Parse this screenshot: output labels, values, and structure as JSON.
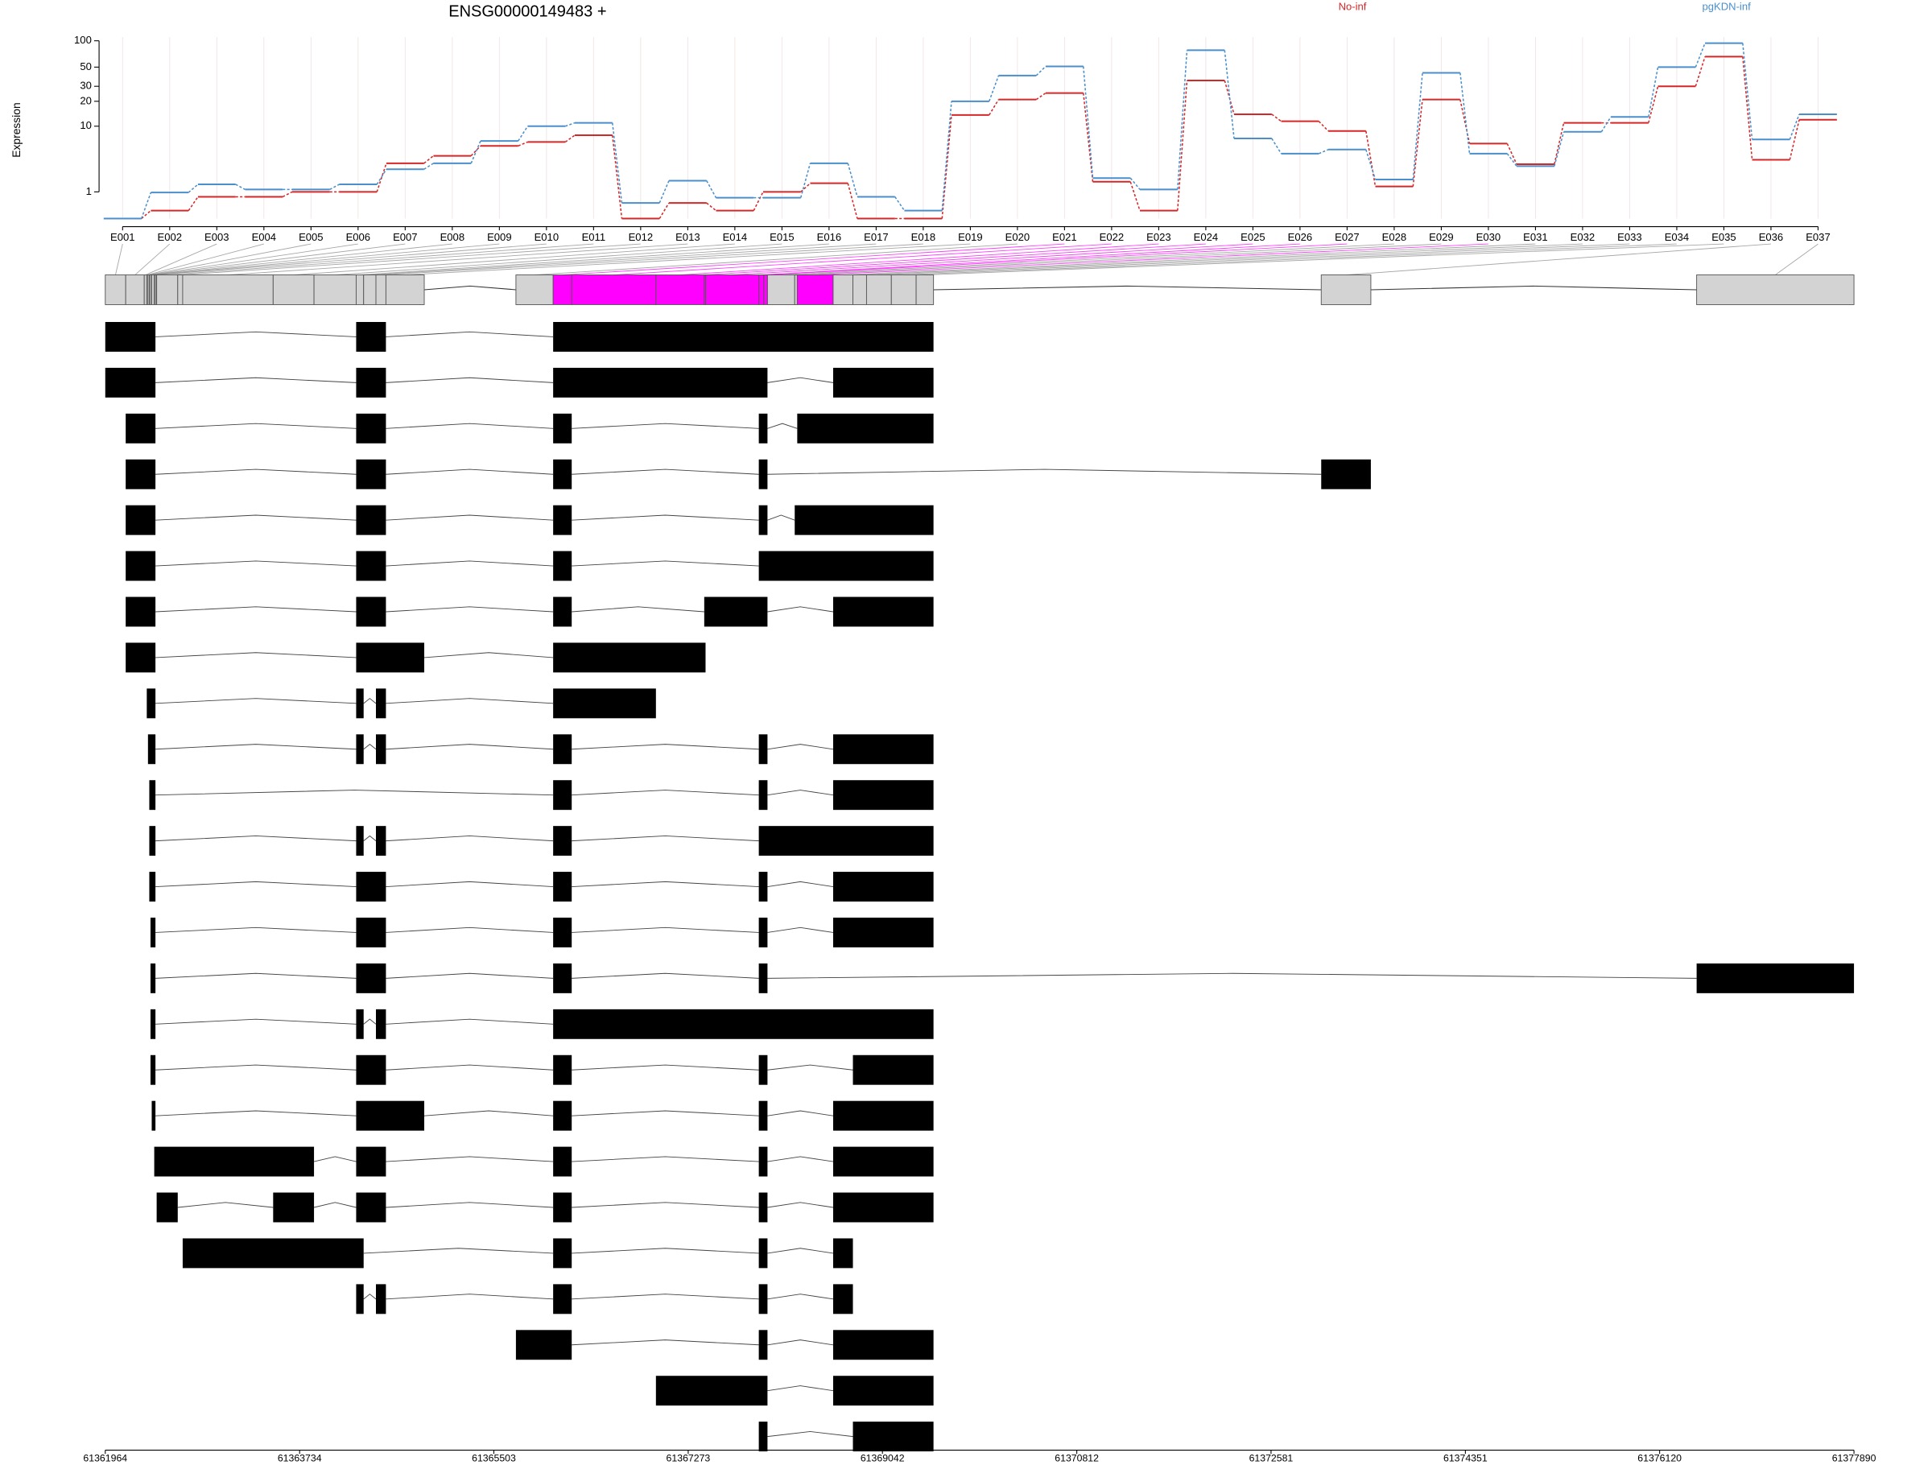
{
  "chart_data": [
    {
      "type": "line",
      "title": "ENSG00000149483 +",
      "y_label": "Expression",
      "categories": [
        "E001",
        "E002",
        "E003",
        "E004",
        "E005",
        "E006",
        "E007",
        "E008",
        "E009",
        "E010",
        "E011",
        "E012",
        "E013",
        "E014",
        "E015",
        "E016",
        "E017",
        "E018",
        "E019",
        "E020",
        "E021",
        "E022",
        "E023",
        "E024",
        "E025",
        "E026",
        "E027",
        "E028",
        "E029",
        "E030",
        "E031",
        "E032",
        "E033",
        "E034",
        "E035",
        "E036",
        "E037"
      ],
      "series": [
        {
          "name": "No-inf",
          "color": "#d62728",
          "values": [
            0,
            0.23,
            0.76,
            0.76,
            1.0,
            1.0,
            3.2,
            4.1,
            5.6,
            6.3,
            7.7,
            0,
            0.5,
            0.23,
            1.0,
            1.5,
            0,
            0,
            13.7,
            21,
            25,
            1.6,
            0.23,
            35,
            14,
            11.5,
            8.7,
            1.3,
            21,
            6,
            3.1,
            11,
            11,
            30,
            66,
            3.6,
            12
          ]
        },
        {
          "name": "pgKDN-inf",
          "color": "#4a8fcb",
          "values": [
            0,
            0.97,
            1.43,
            1.13,
            1.13,
            1.43,
            2.6,
            3.2,
            6.5,
            10,
            11,
            0.5,
            1.67,
            0.72,
            0.72,
            3.2,
            0.76,
            0.23,
            20,
            40,
            51,
            1.86,
            1.13,
            78,
            7,
            4.4,
            5,
            1.76,
            43,
            4.4,
            2.9,
            8.5,
            13,
            50,
            94,
            6.8,
            14
          ]
        }
      ],
      "y_scale": "log1p",
      "ylim": [
        0,
        110
      ],
      "yticks": [
        1,
        10,
        20,
        30,
        50,
        100
      ],
      "grid": true,
      "legend": "top-right"
    },
    {
      "type": "gantt",
      "xlim": [
        61361964,
        61377890
      ],
      "xticks": [
        61361964,
        61363734,
        61365503,
        61367273,
        61369042,
        61370812,
        61372581,
        61374351,
        61376120,
        61377890
      ],
      "exon_color": "#d3d3d3",
      "significant_color": "#ff00ff",
      "transcript_color": "#000000",
      "exon_bins": [
        [
          61361964,
          61362150
        ],
        [
          61362150,
          61362319
        ],
        [
          61362319,
          61362342
        ],
        [
          61362342,
          61362353
        ],
        [
          61362353,
          61362365
        ],
        [
          61362365,
          61362376
        ],
        [
          61362376,
          61362387
        ],
        [
          61362387,
          61362410
        ],
        [
          61362410,
          61362421
        ],
        [
          61362421,
          61362432
        ],
        [
          61362432,
          61362624
        ],
        [
          61362624,
          61362669
        ],
        [
          61362669,
          61363493
        ],
        [
          61363493,
          61363865
        ],
        [
          61363865,
          61364249
        ],
        [
          61364249,
          61364317
        ],
        [
          61364317,
          61364429
        ],
        [
          61364429,
          61364520
        ],
        [
          61364520,
          61364869
        ],
        [
          61365704,
          61366043
        ],
        [
          61366043,
          61366212
        ],
        [
          61366212,
          61366979
        ],
        [
          61366979,
          61367419
        ],
        [
          61367419,
          61367431
        ],
        [
          61367431,
          61367916
        ],
        [
          61367916,
          61367961
        ],
        [
          61367961,
          61367995
        ],
        [
          61367995,
          61368243
        ],
        [
          61368243,
          61368266
        ],
        [
          61368266,
          61368593
        ],
        [
          61368593,
          61368773
        ],
        [
          61368773,
          61368897
        ],
        [
          61368897,
          61369123
        ],
        [
          61369123,
          61369349
        ],
        [
          61369349,
          61369507
        ],
        [
          61373038,
          61373490
        ],
        [
          61376457,
          61377890
        ]
      ],
      "significant": [
        false,
        false,
        false,
        false,
        false,
        false,
        false,
        false,
        false,
        false,
        false,
        false,
        false,
        false,
        false,
        false,
        false,
        false,
        false,
        false,
        true,
        true,
        true,
        true,
        true,
        true,
        true,
        false,
        false,
        true,
        false,
        false,
        false,
        false,
        false,
        false,
        false
      ],
      "transcripts": [
        [
          [
            61361964,
            61362421
          ],
          [
            61364249,
            61364520
          ],
          [
            61366043,
            61369507
          ]
        ],
        [
          [
            61361964,
            61362421
          ],
          [
            61364249,
            61364520
          ],
          [
            61366043,
            61367995
          ],
          [
            61368593,
            61369507
          ]
        ],
        [
          [
            61362150,
            61362421
          ],
          [
            61364249,
            61364520
          ],
          [
            61366043,
            61366212
          ],
          [
            61367916,
            61367995
          ],
          [
            61368266,
            61369507
          ]
        ],
        [
          [
            61362150,
            61362421
          ],
          [
            61364249,
            61364520
          ],
          [
            61366043,
            61366212
          ],
          [
            61367916,
            61367995
          ],
          [
            61373038,
            61373490
          ]
        ],
        [
          [
            61362150,
            61362421
          ],
          [
            61364249,
            61364520
          ],
          [
            61366043,
            61366212
          ],
          [
            61367916,
            61367995
          ],
          [
            61368243,
            61369507
          ]
        ],
        [
          [
            61362150,
            61362421
          ],
          [
            61364249,
            61364520
          ],
          [
            61366043,
            61366212
          ],
          [
            61367916,
            61369507
          ]
        ],
        [
          [
            61362150,
            61362421
          ],
          [
            61364249,
            61364520
          ],
          [
            61366043,
            61366212
          ],
          [
            61367419,
            61367995
          ],
          [
            61368593,
            61369507
          ]
        ],
        [
          [
            61362150,
            61362421
          ],
          [
            61364249,
            61364869
          ],
          [
            61366043,
            61367431
          ]
        ],
        [
          [
            61362342,
            61362421
          ],
          [
            61364249,
            61364317
          ],
          [
            61364429,
            61364520
          ],
          [
            61366043,
            61366979
          ]
        ],
        [
          [
            61362353,
            61362421
          ],
          [
            61364249,
            61364317
          ],
          [
            61364429,
            61364520
          ],
          [
            61366043,
            61366212
          ],
          [
            61367916,
            61367995
          ],
          [
            61368593,
            61369507
          ]
        ],
        [
          [
            61362365,
            61362421
          ],
          [
            61366043,
            61366212
          ],
          [
            61367916,
            61367995
          ],
          [
            61368593,
            61369507
          ]
        ],
        [
          [
            61362365,
            61362421
          ],
          [
            61364249,
            61364317
          ],
          [
            61364429,
            61364520
          ],
          [
            61366043,
            61366212
          ],
          [
            61367916,
            61369507
          ]
        ],
        [
          [
            61362365,
            61362421
          ],
          [
            61364249,
            61364520
          ],
          [
            61366043,
            61366212
          ],
          [
            61367916,
            61367995
          ],
          [
            61368593,
            61369507
          ]
        ],
        [
          [
            61362376,
            61362421
          ],
          [
            61364249,
            61364520
          ],
          [
            61366043,
            61366212
          ],
          [
            61367916,
            61367995
          ],
          [
            61368593,
            61369507
          ]
        ],
        [
          [
            61362376,
            61362421
          ],
          [
            61364249,
            61364520
          ],
          [
            61366043,
            61366212
          ],
          [
            61367916,
            61367995
          ],
          [
            61376457,
            61377890
          ]
        ],
        [
          [
            61362376,
            61362421
          ],
          [
            61364249,
            61364317
          ],
          [
            61364429,
            61364520
          ],
          [
            61366043,
            61369507
          ]
        ],
        [
          [
            61362376,
            61362421
          ],
          [
            61364249,
            61364520
          ],
          [
            61366043,
            61366212
          ],
          [
            61367916,
            61367995
          ],
          [
            61368773,
            61369507
          ]
        ],
        [
          [
            61362387,
            61362421
          ],
          [
            61364249,
            61364869
          ],
          [
            61366043,
            61366212
          ],
          [
            61367916,
            61367995
          ],
          [
            61368593,
            61369507
          ]
        ],
        [
          [
            61362410,
            61363865
          ],
          [
            61364249,
            61364520
          ],
          [
            61366043,
            61366212
          ],
          [
            61367916,
            61367995
          ],
          [
            61368593,
            61369507
          ]
        ],
        [
          [
            61362432,
            61362624
          ],
          [
            61363493,
            61363865
          ],
          [
            61364249,
            61364520
          ],
          [
            61366043,
            61366212
          ],
          [
            61367916,
            61367995
          ],
          [
            61368593,
            61369507
          ]
        ],
        [
          [
            61362669,
            61364317
          ],
          [
            61366043,
            61366212
          ],
          [
            61367916,
            61367995
          ],
          [
            61368593,
            61368773
          ]
        ],
        [
          [
            61364249,
            61364317
          ],
          [
            61364429,
            61364520
          ],
          [
            61366043,
            61366212
          ],
          [
            61367916,
            61367995
          ],
          [
            61368593,
            61368773
          ]
        ],
        [
          [
            61365704,
            61366212
          ],
          [
            61367916,
            61367995
          ],
          [
            61368593,
            61369507
          ]
        ],
        [
          [
            61366979,
            61367995
          ],
          [
            61368593,
            61369507
          ]
        ],
        [
          [
            61367916,
            61367995
          ],
          [
            61368773,
            61369507
          ]
        ]
      ]
    }
  ]
}
